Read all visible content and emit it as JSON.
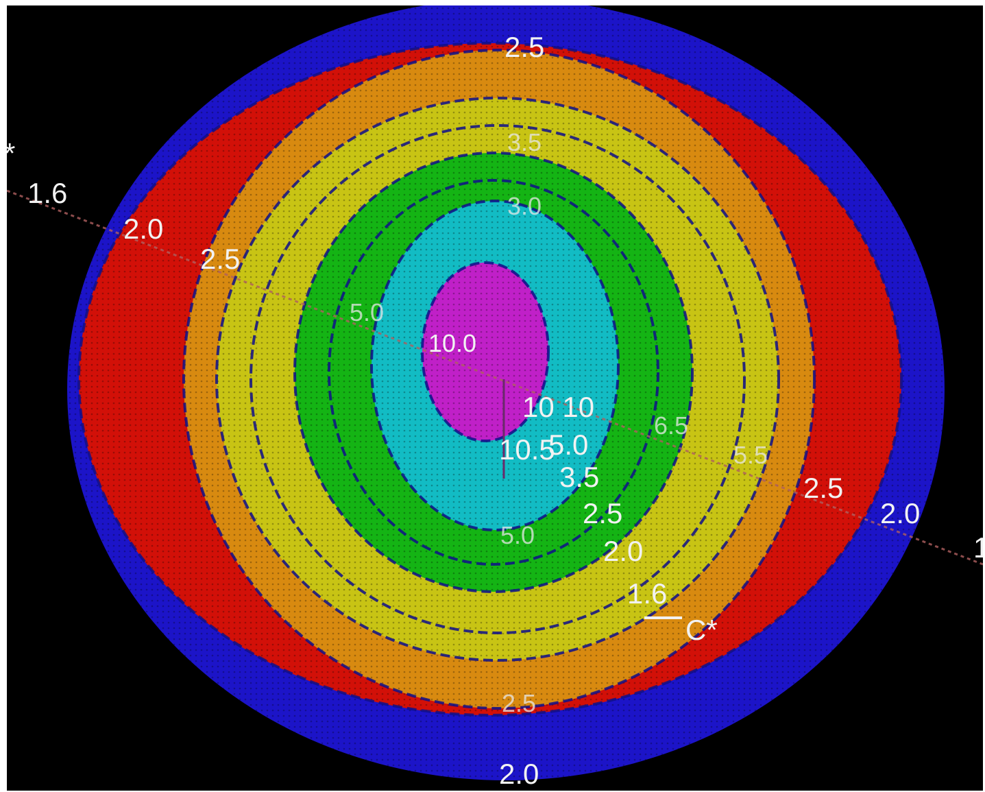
{
  "colors": {
    "background": "#000000",
    "outer_band": "#1c14c8",
    "band_2": "#d21008",
    "band_3": "#d88a10",
    "band_4": "#c8c414",
    "band_5": "#14b414",
    "band_6": "#12bcc4",
    "center": "#c020c8",
    "contour_line": "#10108a",
    "meridian": "#b06060",
    "label": "#f2f2f2"
  },
  "contour_labels": {
    "top": "2.5",
    "left_16": "1.6",
    "left_20": "2.0",
    "left_25": "2.5",
    "inner_30": "3.0",
    "inner_35": "3.5",
    "mid_50": "5.0",
    "center_100": "10.0",
    "center_1010": "10 10",
    "center_105": "10.5",
    "center_50": "5.0",
    "center_35": "3.5",
    "right_65": "6.5",
    "right_55": "5.5",
    "right_25": "2.5",
    "right_20": "2.0",
    "right_edge": "1",
    "lower_50": "5.0",
    "lower_25": "2.5",
    "lower_20": "2.0",
    "lower_16": "1.6",
    "marker": "C*",
    "bottom_25": "2.5",
    "bottom_20": "2.0",
    "corner_star": "*"
  }
}
